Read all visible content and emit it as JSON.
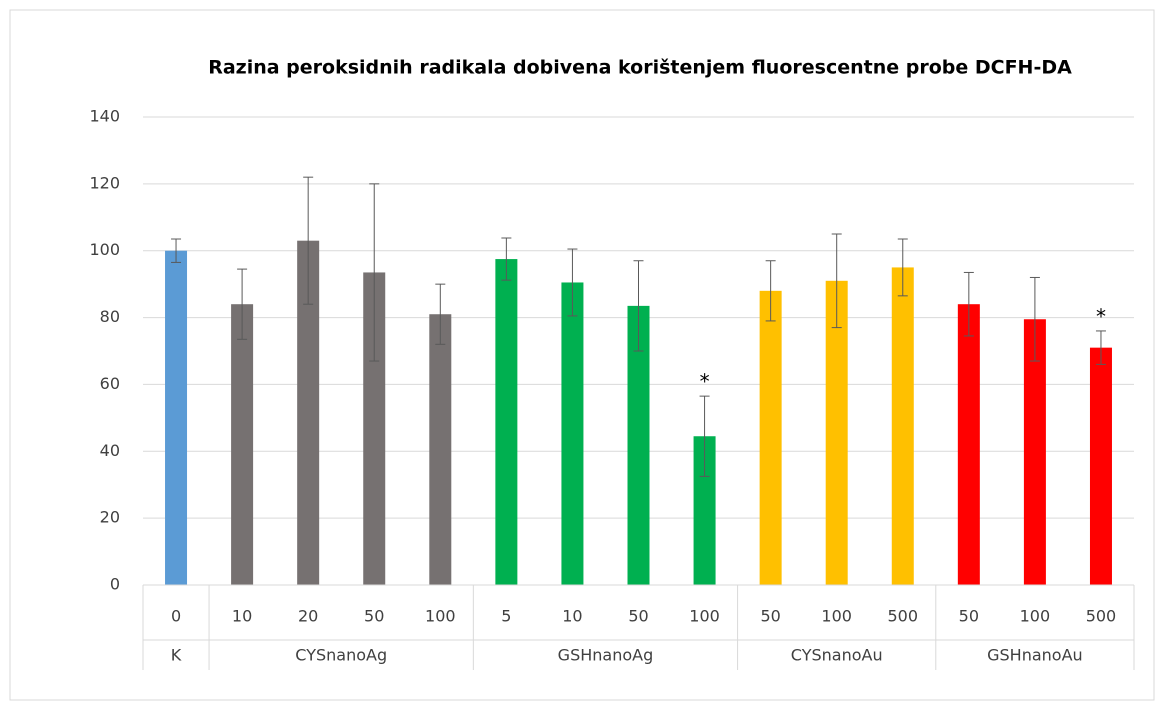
{
  "chart_data": {
    "type": "bar",
    "title": "Razina peroksidnih radikala dobivena korištenjem fluorescentne probe DCFH-DA",
    "ylim": [
      0,
      140
    ],
    "yticks": [
      0,
      20,
      40,
      60,
      80,
      100,
      120,
      140
    ],
    "grid": true,
    "groups": [
      {
        "name": "K",
        "color": "#5b9bd5",
        "categories": [
          "0"
        ],
        "values": [
          100
        ],
        "errors": [
          3.5
        ]
      },
      {
        "name": "CYSnanoAg",
        "color": "#767171",
        "categories": [
          "10",
          "20",
          "50",
          "100"
        ],
        "values": [
          84,
          103,
          93.5,
          81
        ],
        "errors": [
          10.5,
          19,
          26.5,
          9
        ]
      },
      {
        "name": "GSHnanoAg",
        "color": "#00b050",
        "categories": [
          "5",
          "10",
          "50",
          "100"
        ],
        "values": [
          97.5,
          90.5,
          83.5,
          44.5
        ],
        "errors": [
          6.3,
          10,
          13.5,
          12
        ]
      },
      {
        "name": "CYSnanoAu",
        "color": "#ffc000",
        "categories": [
          "50",
          "100",
          "500"
        ],
        "values": [
          88,
          91,
          95
        ],
        "errors": [
          9,
          14,
          8.5
        ]
      },
      {
        "name": "GSHnanoAu",
        "color": "#ff0000",
        "categories": [
          "50",
          "100",
          "500"
        ],
        "values": [
          84,
          79.5,
          71
        ],
        "errors": [
          9.5,
          12.5,
          5
        ]
      }
    ],
    "annotations": [
      {
        "text": "*",
        "group": "GSHnanoAg",
        "category": "100"
      },
      {
        "text": "*",
        "group": "GSHnanoAu",
        "category": "500"
      }
    ]
  }
}
